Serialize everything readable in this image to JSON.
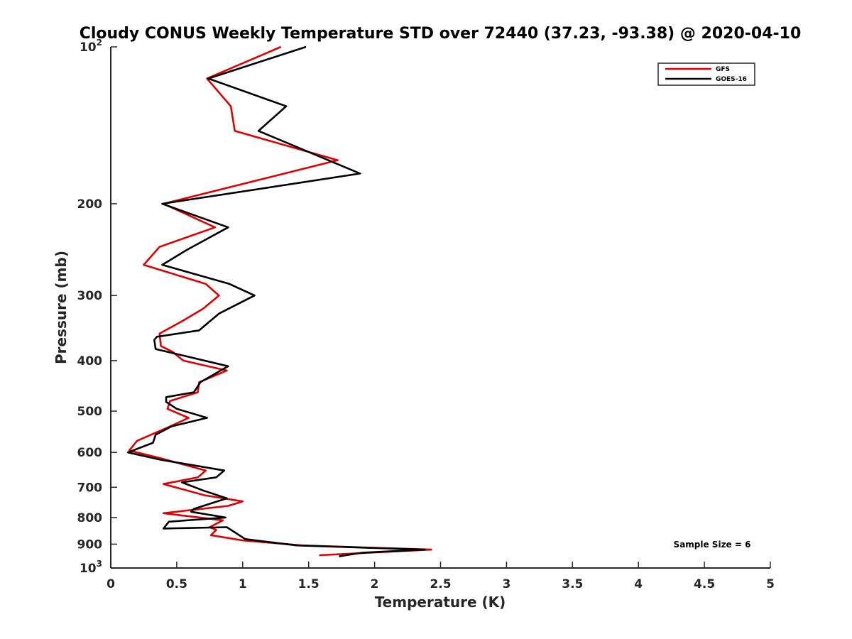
{
  "chart_data": {
    "type": "line",
    "title": "Cloudy CONUS Weekly Temperature STD over 72440 (37.23, -93.38) @ 2020-04-10",
    "xlabel": "Temperature (K)",
    "ylabel": "Pressure (mb)",
    "xlim": [
      0,
      5
    ],
    "ylim": [
      100,
      1000
    ],
    "y_scale": "log",
    "y_reversed": true,
    "x_ticks": [
      0,
      0.5,
      1,
      1.5,
      2,
      2.5,
      3,
      3.5,
      4,
      4.5,
      5
    ],
    "x_tick_labels": [
      "0",
      "0.5",
      "1",
      "1.5",
      "2",
      "2.5",
      "3",
      "3.5",
      "4",
      "4.5",
      "5"
    ],
    "y_ticks": [
      100,
      200,
      300,
      400,
      500,
      600,
      700,
      800,
      900,
      1000
    ],
    "y_tick_labels": [
      "10^2",
      "200",
      "300",
      "400",
      "500",
      "600",
      "700",
      "800",
      "900",
      "10^3"
    ],
    "grid": false,
    "legend_position": "top-right",
    "annotation": "Sample Size = 6",
    "series": [
      {
        "name": "GFS",
        "color": "#e00000",
        "x": [
          1.29,
          0.73,
          0.91,
          0.94,
          1.72,
          0.4,
          0.79,
          0.37,
          0.25,
          0.72,
          0.82,
          0.7,
          0.55,
          0.37,
          0.38,
          0.47,
          0.55,
          0.88,
          0.67,
          0.66,
          0.45,
          0.43,
          0.59,
          0.45,
          0.2,
          0.14,
          0.37,
          0.72,
          0.66,
          0.4,
          0.71,
          1.0,
          0.89,
          0.4,
          0.85,
          0.75,
          0.8,
          0.76,
          1.0,
          1.45,
          2.43,
          1.58
        ],
        "y": [
          100,
          115,
          130,
          145,
          165,
          200,
          222,
          242,
          262,
          285,
          300,
          318,
          335,
          355,
          375,
          385,
          400,
          418,
          440,
          460,
          478,
          495,
          515,
          535,
          570,
          595,
          615,
          650,
          670,
          690,
          725,
          745,
          760,
          785,
          810,
          835,
          845,
          865,
          885,
          905,
          922,
          945
        ]
      },
      {
        "name": "GOES-16",
        "color": "#000000",
        "x": [
          1.48,
          0.74,
          1.33,
          1.12,
          1.89,
          0.39,
          0.89,
          0.58,
          0.39,
          0.9,
          1.09,
          0.82,
          0.67,
          0.35,
          0.33,
          0.34,
          0.89,
          0.68,
          0.63,
          0.42,
          0.42,
          0.5,
          0.73,
          0.46,
          0.34,
          0.32,
          0.13,
          0.38,
          0.86,
          0.8,
          0.54,
          0.7,
          0.88,
          0.63,
          0.61,
          0.87,
          0.44,
          0.4,
          0.88,
          1.02,
          1.41,
          2.38,
          1.9,
          1.73
        ],
        "y": [
          100,
          115,
          130,
          145,
          175,
          200,
          222,
          245,
          262,
          285,
          300,
          325,
          350,
          360,
          365,
          380,
          410,
          440,
          460,
          470,
          480,
          495,
          515,
          535,
          555,
          575,
          600,
          620,
          650,
          670,
          685,
          710,
          735,
          770,
          780,
          800,
          815,
          840,
          835,
          880,
          905,
          922,
          935,
          950
        ]
      }
    ]
  }
}
